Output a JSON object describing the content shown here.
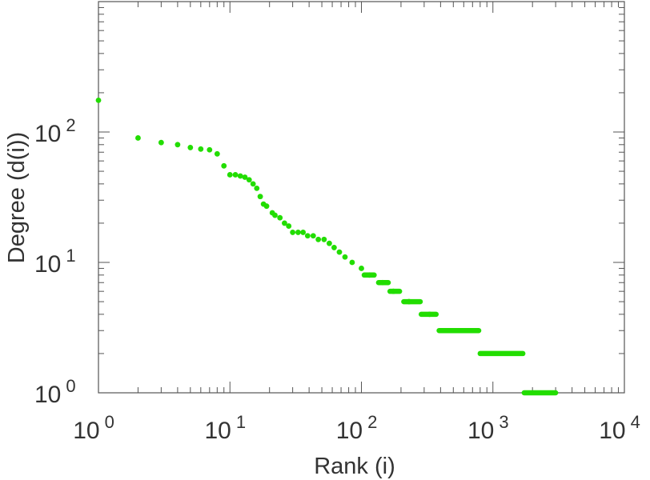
{
  "chart_data": {
    "type": "scatter",
    "title": "",
    "xlabel": "Rank (i)",
    "ylabel": "Degree (d(i))",
    "xscale": "log",
    "yscale": "log",
    "xlim": [
      1,
      10000
    ],
    "ylim": [
      1,
      1000
    ],
    "grid": false,
    "legend": "none",
    "marker_color": "#22dd00",
    "x_ticks": [
      {
        "value": 1,
        "base": "10",
        "exp": "0"
      },
      {
        "value": 10,
        "base": "10",
        "exp": "1"
      },
      {
        "value": 100,
        "base": "10",
        "exp": "2"
      },
      {
        "value": 1000,
        "base": "10",
        "exp": "3"
      },
      {
        "value": 10000,
        "base": "10",
        "exp": "4"
      }
    ],
    "y_ticks": [
      {
        "value": 1,
        "base": "10",
        "exp": "0"
      },
      {
        "value": 10,
        "base": "10",
        "exp": "1"
      },
      {
        "value": 100,
        "base": "10",
        "exp": "2"
      }
    ],
    "series": [
      {
        "points": [
          [
            1,
            175
          ],
          [
            2,
            90
          ],
          [
            3,
            83
          ],
          [
            4,
            80
          ],
          [
            5,
            76
          ],
          [
            6,
            74
          ],
          [
            7,
            73
          ],
          [
            8,
            68
          ],
          [
            9,
            55
          ],
          [
            10,
            47
          ],
          [
            11,
            47
          ],
          [
            12,
            46
          ],
          [
            13,
            45
          ],
          [
            14,
            43
          ],
          [
            15,
            40
          ],
          [
            16,
            37
          ],
          [
            17,
            32
          ],
          [
            18,
            28
          ],
          [
            19,
            27
          ],
          [
            21,
            24
          ],
          [
            22,
            23
          ],
          [
            24,
            22
          ],
          [
            26,
            20
          ],
          [
            28,
            19
          ],
          [
            30,
            17
          ],
          [
            33,
            17
          ],
          [
            36,
            17
          ],
          [
            39,
            16
          ],
          [
            43,
            16
          ],
          [
            47,
            15
          ],
          [
            52,
            15
          ],
          [
            57,
            14
          ],
          [
            62,
            13
          ],
          [
            68,
            12
          ],
          [
            75,
            11
          ],
          [
            85,
            10
          ],
          [
            100,
            9
          ],
          [
            115,
            8
          ],
          [
            145,
            7
          ],
          [
            175,
            6
          ],
          [
            230,
            5
          ],
          [
            330,
            4
          ]
        ],
        "plateaus": [
          {
            "y": 8,
            "x_from": 105,
            "x_to": 125
          },
          {
            "y": 7,
            "x_from": 135,
            "x_to": 160
          },
          {
            "y": 6,
            "x_from": 165,
            "x_to": 195
          },
          {
            "y": 5,
            "x_from": 210,
            "x_to": 280
          },
          {
            "y": 4,
            "x_from": 285,
            "x_to": 370
          },
          {
            "y": 3,
            "x_from": 390,
            "x_to": 780
          },
          {
            "y": 2,
            "x_from": 800,
            "x_to": 1690
          },
          {
            "y": 1,
            "x_from": 1730,
            "x_to": 3000
          }
        ]
      }
    ]
  }
}
